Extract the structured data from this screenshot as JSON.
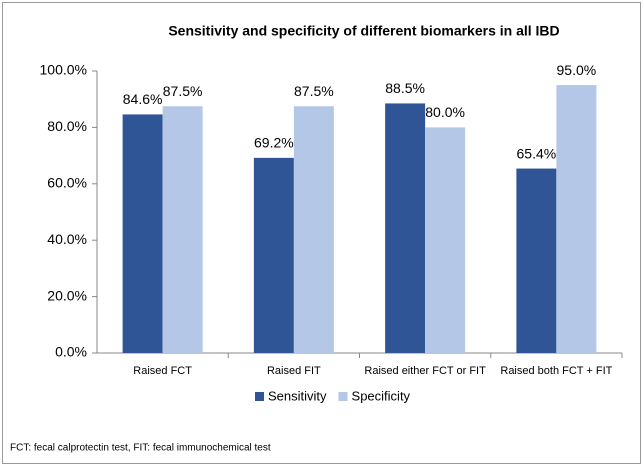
{
  "chart_data": {
    "type": "bar",
    "title": "Sensitivity and specificity of different biomarkers in all IBD",
    "categories": [
      "Raised FCT",
      "Raised FIT",
      "Raised either FCT or FIT",
      "Raised both FCT + FIT"
    ],
    "series": [
      {
        "name": "Sensitivity",
        "color": "#2f5597",
        "values": [
          84.6,
          69.2,
          88.5,
          65.4
        ],
        "value_labels": [
          "84.6%",
          "69.2%",
          "88.5%",
          "65.4%"
        ]
      },
      {
        "name": "Specificity",
        "color": "#b4c7e7",
        "values": [
          87.5,
          87.5,
          80.0,
          95.0
        ],
        "value_labels": [
          "87.5%",
          "87.5%",
          "80.0%",
          "95.0%"
        ]
      }
    ],
    "ylim": [
      0,
      100
    ],
    "yticks": [
      {
        "value": 0,
        "label": "0.0%"
      },
      {
        "value": 20,
        "label": "20.0%"
      },
      {
        "value": 40,
        "label": "40.0%"
      },
      {
        "value": 60,
        "label": "60.0%"
      },
      {
        "value": 80,
        "label": "80.0%"
      },
      {
        "value": 100,
        "label": "100.0%"
      }
    ],
    "grid": false,
    "legend": "bottom",
    "footnote": "FCT: fecal calprotectin test, FIT: fecal immunochemical test"
  }
}
